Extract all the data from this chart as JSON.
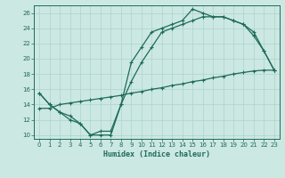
{
  "line1": {
    "x": [
      0,
      1,
      2,
      3,
      4,
      5,
      6,
      7,
      8,
      9,
      10,
      11,
      12,
      13,
      14,
      15,
      16,
      17,
      18,
      19,
      20,
      21,
      22,
      23
    ],
    "y": [
      15.5,
      14,
      13,
      12.5,
      11.5,
      10,
      10,
      10,
      14,
      19.5,
      21.5,
      23.5,
      24,
      24.5,
      25,
      26.5,
      26,
      25.5,
      25.5,
      25,
      24.5,
      23.5,
      21,
      18.5
    ]
  },
  "line2": {
    "x": [
      0,
      1,
      2,
      3,
      4,
      5,
      6,
      7,
      8,
      9,
      10,
      11,
      12,
      13,
      14,
      15,
      16,
      17,
      18,
      19,
      20,
      21,
      22,
      23
    ],
    "y": [
      13.5,
      13.5,
      14.0,
      14.2,
      14.4,
      14.6,
      14.8,
      15.0,
      15.2,
      15.5,
      15.7,
      16.0,
      16.2,
      16.5,
      16.7,
      17.0,
      17.2,
      17.5,
      17.7,
      18.0,
      18.2,
      18.4,
      18.5,
      18.5
    ]
  },
  "line3": {
    "x": [
      0,
      1,
      2,
      3,
      4,
      5,
      6,
      7,
      8,
      9,
      10,
      11,
      12,
      13,
      14,
      15,
      16,
      17,
      18,
      19,
      20,
      21,
      22,
      23
    ],
    "y": [
      15.5,
      14,
      13,
      12,
      11.5,
      10,
      10.5,
      10.5,
      14,
      17.0,
      19.5,
      21.5,
      23.5,
      24,
      24.5,
      25,
      25.5,
      25.5,
      25.5,
      25,
      24.5,
      23,
      21,
      18.5
    ]
  },
  "xlabel": "Humidex (Indice chaleur)",
  "xlim": [
    -0.5,
    23.5
  ],
  "ylim": [
    9.5,
    27
  ],
  "yticks": [
    10,
    12,
    14,
    16,
    18,
    20,
    22,
    24,
    26
  ],
  "xticks": [
    0,
    1,
    2,
    3,
    4,
    5,
    6,
    7,
    8,
    9,
    10,
    11,
    12,
    13,
    14,
    15,
    16,
    17,
    18,
    19,
    20,
    21,
    22,
    23
  ],
  "bg_color": "#cce8e2",
  "grid_color": "#aad4cc",
  "line_color": "#1e6b5a"
}
